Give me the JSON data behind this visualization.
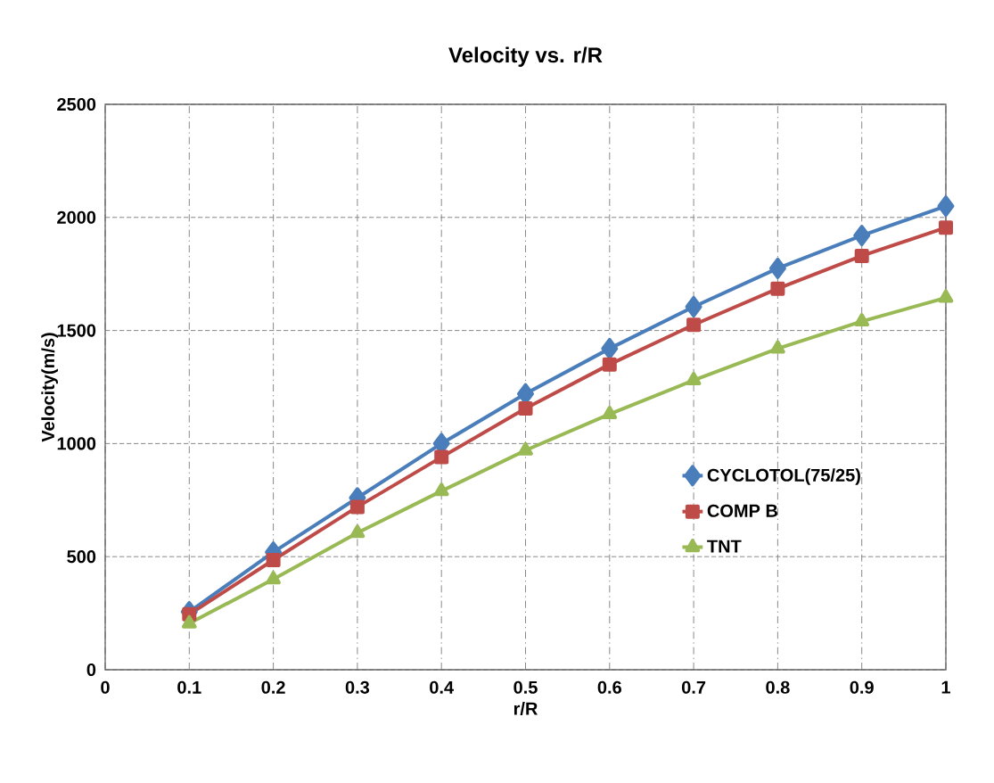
{
  "chart_data": {
    "type": "line",
    "title": "Velocity vs. r/R",
    "xlabel": "r/R",
    "ylabel": "Velocity(m/s)",
    "x": [
      0.1,
      0.2,
      0.3,
      0.4,
      0.5,
      0.6,
      0.7,
      0.8,
      0.9,
      1
    ],
    "series": [
      {
        "name": "CYCLOTOL(75/25)",
        "color": "#4a7ebb",
        "marker": "diamond",
        "values": [
          256,
          520,
          760,
          1000,
          1220,
          1420,
          1605,
          1775,
          1920,
          2050
        ]
      },
      {
        "name": "COMP B",
        "color": "#be4b48",
        "marker": "square",
        "values": [
          245,
          485,
          720,
          940,
          1155,
          1350,
          1525,
          1685,
          1830,
          1955
        ]
      },
      {
        "name": "TNT",
        "color": "#98b954",
        "marker": "triangle",
        "values": [
          205,
          400,
          605,
          790,
          970,
          1130,
          1280,
          1420,
          1540,
          1645
        ]
      }
    ],
    "xlim": [
      0,
      1
    ],
    "xticks": [
      0,
      0.1,
      0.2,
      0.3,
      0.4,
      0.5,
      0.6,
      0.7,
      0.8,
      0.9,
      1
    ],
    "ylim": [
      0,
      2500
    ],
    "yticks": [
      0,
      500,
      1000,
      1500,
      2000,
      2500
    ],
    "grid": true,
    "legend": "right",
    "line_style": "solid"
  }
}
